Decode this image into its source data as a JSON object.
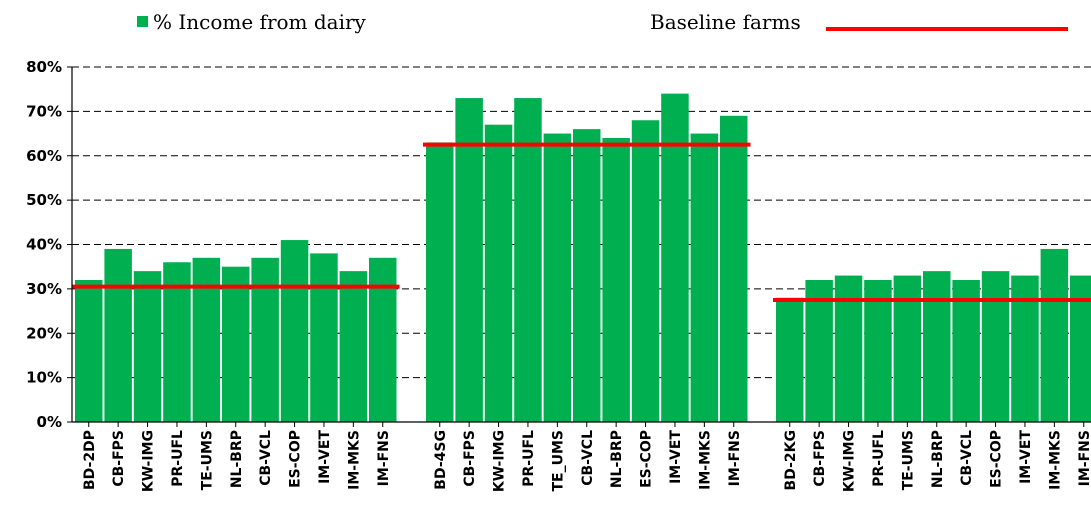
{
  "chart_data": {
    "type": "bar",
    "title": "",
    "xlabel": "",
    "ylabel": "",
    "ylim": [
      0,
      80
    ],
    "y_ticks": [
      "0%",
      "10%",
      "20%",
      "30%",
      "40%",
      "50%",
      "60%",
      "70%",
      "80%"
    ],
    "grid": "dashed-horizontal",
    "legend": {
      "placement": "top",
      "series_label": "% Income from dairy",
      "baseline_label": "Baseline farms"
    },
    "colors": {
      "bar": "#00b050",
      "baseline": "#ff0000",
      "grid": "#000000"
    },
    "groups": [
      {
        "categories": [
          "BD-2DP",
          "CB-FPS",
          "KW-IMG",
          "PR-UFL",
          "TE-UMS",
          "NL-BRP",
          "CB-VCL",
          "ES-COP",
          "IM-VET",
          "IM-MKS",
          "IM-FNS"
        ],
        "values": [
          32,
          39,
          34,
          36,
          37,
          35,
          37,
          41,
          38,
          34,
          37
        ],
        "baseline": 30.5
      },
      {
        "categories": [
          "BD-4SG",
          "CB-FPS",
          "KW-IMG",
          "PR-UFL",
          "TE_UMS",
          "CB-VCL",
          "NL-BRP",
          "ES-COP",
          "IM-VET",
          "IM-MKS",
          "IM-FNS"
        ],
        "values": [
          63,
          73,
          67,
          73,
          65,
          66,
          64,
          68,
          74,
          65,
          69
        ],
        "baseline": 62.5
      },
      {
        "categories": [
          "BD-2KG",
          "CB-FPS",
          "KW-IMG",
          "PR-UFL",
          "TE-UMS",
          "NL-BRP",
          "CB-VCL",
          "ES-COP",
          "IM-VET",
          "IM-MKS",
          "IM-FNS"
        ],
        "values": [
          28,
          32,
          33,
          32,
          33,
          34,
          32,
          34,
          33,
          39,
          33
        ],
        "baseline": 27.5
      }
    ]
  }
}
